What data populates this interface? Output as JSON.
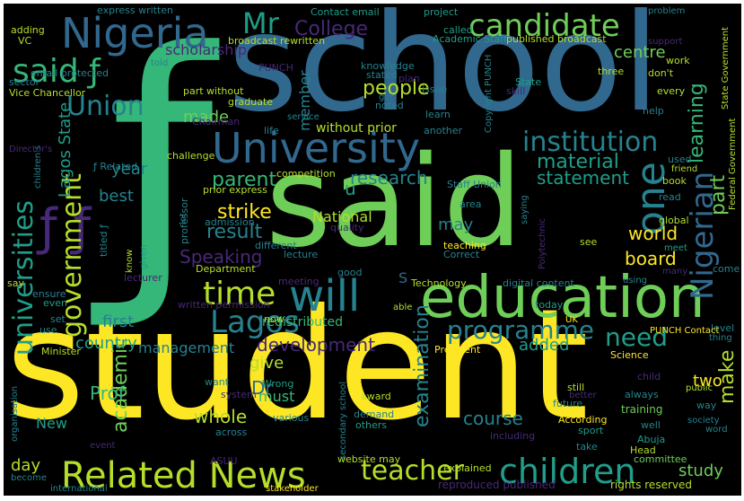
{
  "palette": {
    "background": "#000000",
    "yellow": "#fde725",
    "lime": "#b5de2b",
    "green": "#6ece58",
    "teal_green": "#35b779",
    "teal": "#1f9e89",
    "cyan": "#26828e",
    "blue": "#31688e",
    "indigo": "#3e4989",
    "purple": "#482878",
    "dark_purple": "#440154"
  },
  "words": {
    "student": "student",
    "school": "school",
    "said": "said",
    "f_big": "ƒ",
    "education": "education",
    "will": "will",
    "university": "University",
    "nigeria": "Nigeria",
    "related_news": "Related News",
    "children": "children",
    "said_f": "said ƒ",
    "candidate": "candidate",
    "mr": "Mr",
    "college": "College",
    "union": "Union",
    "institution": "institution",
    "one": "one",
    "nigerian": "Nigerian",
    "universities": "universities",
    "government": "government",
    "ff": "ƒ ƒ",
    "time": "time",
    "lagos": "Lagos",
    "programme": "programme",
    "need": "need",
    "teacher": "teacher",
    "people": "people",
    "learning": "learning",
    "centre": "centre",
    "parent": "parent",
    "material": "material",
    "statement": "statement",
    "research": "research",
    "strike": "strike",
    "result": "result",
    "world": "world",
    "speaking": "Speaking",
    "board": "board",
    "may": "may",
    "course": "course",
    "whole": "whole",
    "prof": "Prof",
    "dr": "Dr",
    "development": "development",
    "country": "country",
    "added": "added",
    "management": "management",
    "give": "give",
    "must": "must",
    "new": "New",
    "academic": "academic",
    "examination": "examination",
    "study": "study",
    "two": "two",
    "make": "make",
    "day": "day",
    "year": "year",
    "best": "best",
    "first": "first",
    "national": "National",
    "part": "part",
    "made": "made",
    "u": "u",
    "lagos_state": "Lagos State",
    "member": "member",
    "scholarship": "scholarship",
    "without_prior": "without prior",
    "redistributed": "redistributed",
    "website_may": "website may",
    "explained": "explained",
    "rights_reserved": "rights reserved",
    "reproduced_published": "reproduced published",
    "international": "international",
    "stakeholder": "stakeholder",
    "become": "become",
    "asuu": "ASUU",
    "across": "across",
    "various": "various",
    "secondary_school": "secondary school",
    "others": "others",
    "including": "including",
    "sport": "sport",
    "take": "take",
    "head": "Head",
    "committee": "committee",
    "abuja": "Abuja",
    "according": "According",
    "training": "training",
    "well": "well",
    "society": "society",
    "word": "word",
    "way": "way",
    "always": "always",
    "public": "public",
    "still": "still",
    "better": "better",
    "future": "future",
    "award": "award",
    "demand": "demand",
    "wrong": "Wrong",
    "system": "system",
    "want": "want",
    "event": "event",
    "organisation": "organisation",
    "ensure": "ensure",
    "even": "even",
    "say": "say",
    "set": "set",
    "use": "use",
    "minister": "Minister",
    "written_permission": "written permission",
    "now": "now",
    "meeting": "meeting",
    "good": "good",
    "lecturer": "lecturer",
    "given": "given",
    "know": "know",
    "department": "Department",
    "lecture": "lecture",
    "different": "different",
    "professor": "professor",
    "quality": "quality",
    "admission": "admission",
    "lot": "lot",
    "titled_f": "titled ƒ",
    "prior_express": "prior express",
    "competition": "competition",
    "challenge": "challenge",
    "chairman": "Chairman",
    "childrens": "children's",
    "directors": "Director's",
    "vice_chancellor": "Vice Chancellor",
    "sector": "sector",
    "email_protected": "email protected",
    "vc": "VC",
    "adding": "adding",
    "express_written": "express written",
    "broadcast_rewritten": "broadcast rewritten",
    "told": "told",
    "punch": "PUNCH",
    "part_without": "part without",
    "graduate": "graduate",
    "life": "life",
    "service": "service",
    "contact_email": "Contact email",
    "project": "project",
    "called": "called",
    "academic_staff": "Academic Staff",
    "published_broadcast": "published broadcast",
    "problem": "problem",
    "support": "support",
    "work": "work",
    "dont": "don't",
    "three": "three",
    "state_government": "State Government",
    "copyright_punch": "Copyright PUNCH",
    "knowledge": "knowledge",
    "stated": "stated",
    "plan": "plan",
    "issue": "issue",
    "noted": "noted",
    "got": "got",
    "skill": "skill",
    "state": "State",
    "every": "every",
    "help": "help",
    "learn": "learn",
    "another": "another",
    "federal_government": "Federal Government",
    "used": "used",
    "friend": "friend",
    "book": "book",
    "read": "read",
    "staff_union": "Staff Union",
    "area": "area",
    "saying": "saying",
    "polytechnic": "Polytechnic",
    "global": "global",
    "teaching": "teaching",
    "correct": "Correct",
    "see": "see",
    "meet": "meet",
    "many": "many",
    "come": "come",
    "level": "level",
    "thing": "thing",
    "child": "child",
    "technology": "Technology",
    "digital_content": "digital content",
    "using": "using",
    "today": "today",
    "uk": "UK",
    "punch_contact": "PUNCH Contact",
    "president": "President",
    "science": "Science",
    "able": "able",
    "s": "S",
    "related_f": "ƒ Related"
  }
}
